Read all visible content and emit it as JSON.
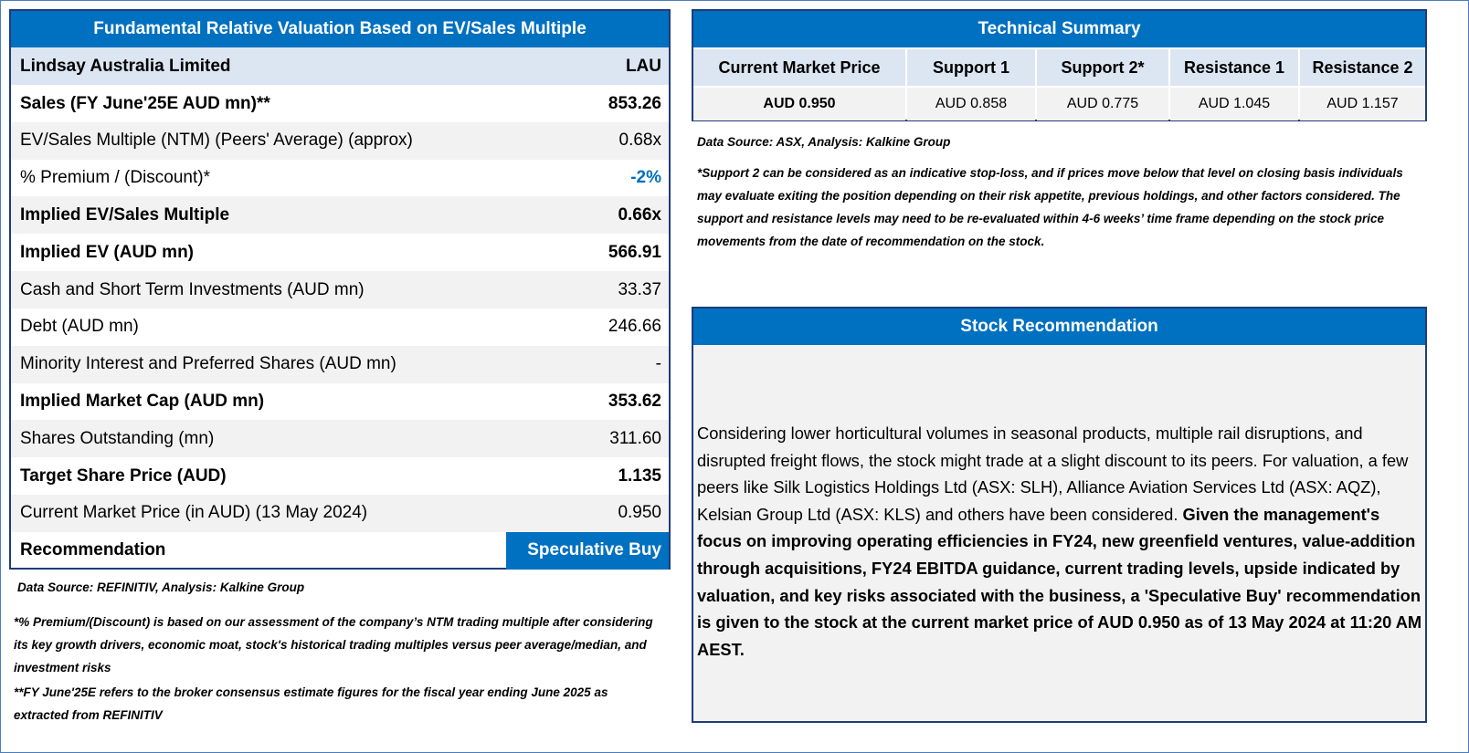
{
  "valuation": {
    "title": "Fundamental Relative Valuation Based on EV/Sales Multiple",
    "header": [
      "Lindsay Australia Limited",
      "LAU"
    ],
    "rows": [
      [
        "Sales (FY June'25E AUD mn)**",
        "853.26"
      ],
      [
        "EV/Sales Multiple (NTM)  (Peers' Average) (approx)",
        "0.68x"
      ],
      [
        "% Premium / (Discount)*",
        "-2%"
      ],
      [
        "Implied EV/Sales Multiple",
        "0.66x"
      ],
      [
        "Implied EV (AUD mn)",
        "566.91"
      ],
      [
        "Cash and Short Term Investments (AUD mn)",
        "33.37"
      ],
      [
        "Debt (AUD mn)",
        "246.66"
      ],
      [
        "Minority Interest and Preferred Shares (AUD mn)",
        "-"
      ],
      [
        "Implied Market Cap (AUD mn)",
        "353.62"
      ],
      [
        "Shares Outstanding (mn)",
        "311.60"
      ],
      [
        "Target Share Price (AUD)",
        "1.135"
      ],
      [
        "Current Market Price (in AUD) (13 May 2024)",
        "0.950"
      ],
      [
        "Recommendation",
        "Speculative Buy"
      ]
    ],
    "source": "Data Source: REFINITIV, Analysis: Kalkine Group",
    "notes": [
      "*% Premium/(Discount) is based on our assessment of the company’s NTM trading multiple after considering its key growth drivers, economic moat, stock's historical trading multiples versus peer average/median, and investment risks",
      "**FY June'25E refers to the broker consensus estimate figures for the fiscal year ending June 2025  as extracted from REFINITIV"
    ]
  },
  "technical": {
    "title": "Technical Summary",
    "headers": [
      "Current Market Price",
      "Support 1",
      "Support 2*",
      "Resistance 1",
      "Resistance 2"
    ],
    "values": [
      "AUD 0.950",
      "AUD 0.858",
      "AUD 0.775",
      "AUD 1.045",
      "AUD 1.157"
    ],
    "source": "Data Source: ASX, Analysis: Kalkine Group",
    "note": "*Support 2 can be considered as an indicative stop-loss, and if prices move below that level on closing basis individuals may evaluate exiting the position depending on their risk appetite, previous holdings, and other factors considered. The support and resistance levels may need to be re-evaluated within 4-6 weeks’ time frame depending on the stock price movements from the date of recommendation on the stock."
  },
  "recommendation": {
    "title": "Stock Recommendation",
    "text": "Considering lower horticultural volumes in seasonal products, multiple rail disruptions, and disrupted freight flows, the stock might trade at a slight discount to its peers. For valuation, a few peers like Silk Logistics Holdings Ltd (ASX: SLH), Alliance Aviation Services Ltd (ASX: AQZ), Kelsian Group Ltd (ASX: KLS) and others have been considered.",
    "emphasis": "Given the management's focus on improving operating efficiencies in FY24, new greenfield ventures, value-addition through acquisitions, FY24 EBITDA guidance, current trading levels, upside indicated by valuation, and key risks associated with the business, a 'Speculative Buy' recommendation is given to the stock at the current market price of AUD 0.950 as of 13 May 2024 at 11:20 AM AEST."
  }
}
